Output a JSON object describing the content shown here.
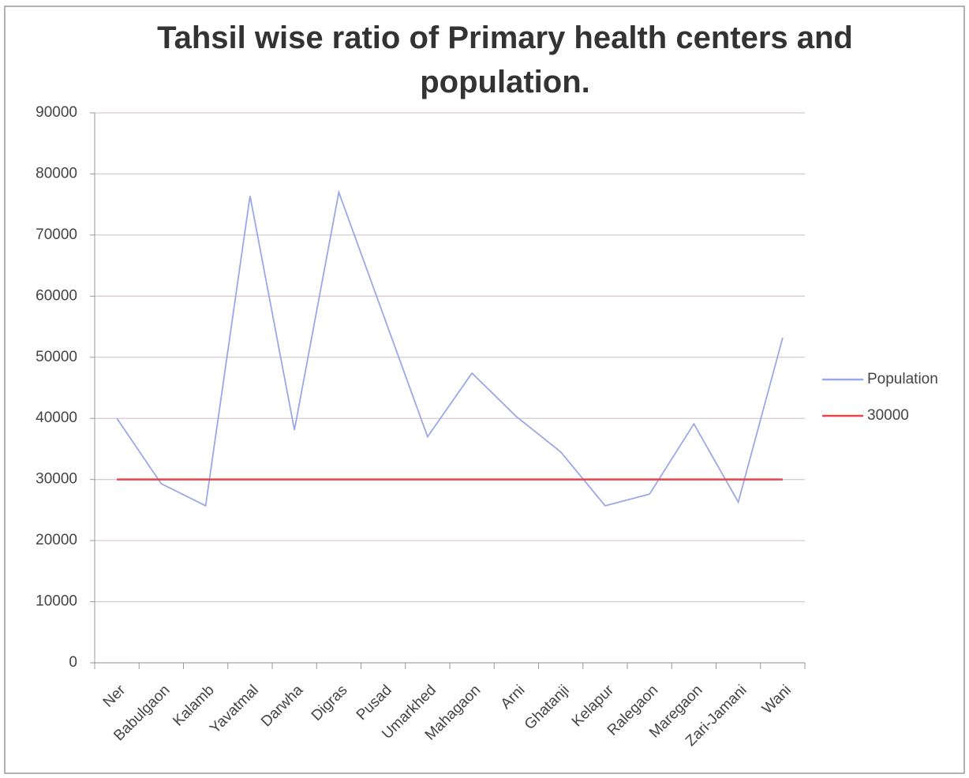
{
  "chart_data": {
    "type": "line",
    "title": "Tahsil wise ratio of Primary health centers and population.",
    "categories": [
      "Ner",
      "Babulgaon",
      "Kalamb",
      "Yavatmal",
      "Darwha",
      "Digras",
      "Pusad",
      "Umarkhed",
      "Mahagaon",
      "Arni",
      "Ghatanji",
      "Kelapur",
      "Ralegaon",
      "Maregaon",
      "Zari-Jamani",
      "Wani"
    ],
    "series": [
      {
        "name": "Population",
        "color": "#9aa8e8",
        "values": [
          40000,
          29300,
          25700,
          76400,
          38100,
          77000,
          57000,
          37000,
          47400,
          40300,
          34500,
          25700,
          27600,
          39100,
          26300,
          53200
        ]
      },
      {
        "name": "30000",
        "color": "#e8454a",
        "values": [
          30000,
          30000,
          30000,
          30000,
          30000,
          30000,
          30000,
          30000,
          30000,
          30000,
          30000,
          30000,
          30000,
          30000,
          30000,
          30000
        ]
      }
    ],
    "ylim": [
      0,
      90000
    ],
    "yticks": [
      0,
      10000,
      20000,
      30000,
      40000,
      50000,
      60000,
      70000,
      80000,
      90000
    ],
    "grid": true,
    "legend": "right"
  }
}
